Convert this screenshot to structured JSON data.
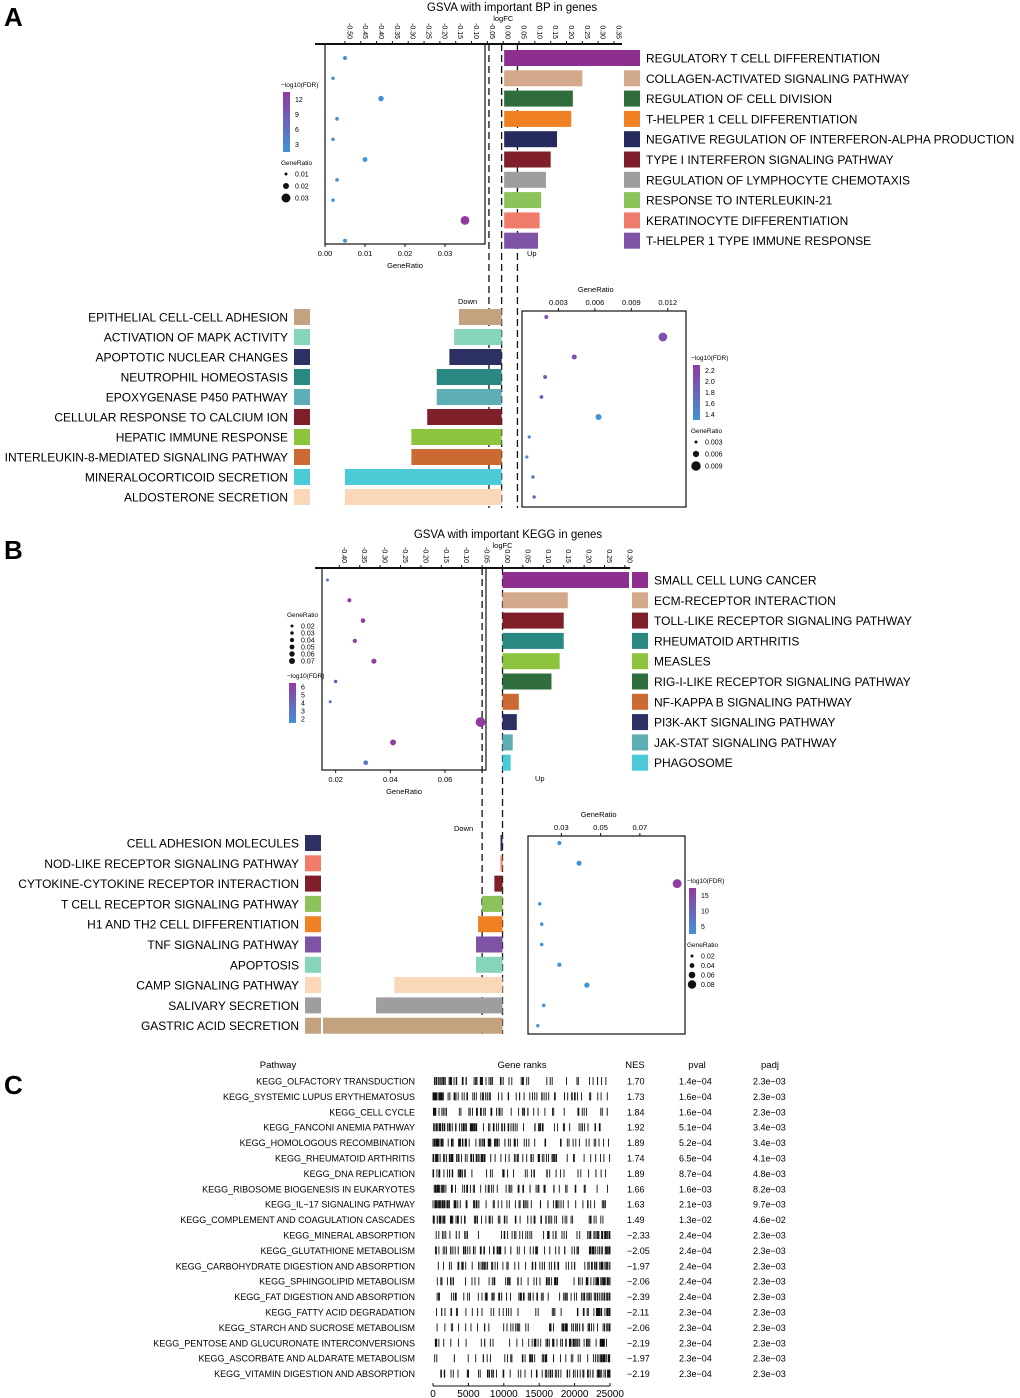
{
  "panel_labels": [
    "A",
    "B",
    "C"
  ],
  "chart_data": [
    {
      "type": "bar",
      "panel": "A",
      "title": "GSVA  with important BP in genes",
      "xlabel": "logFC",
      "logfc_ticks": [
        "-0.50",
        "-0.45",
        "-0.40",
        "-0.35",
        "-0.30",
        "-0.25",
        "-0.20",
        "-0.15",
        "-0.10",
        "-0.05",
        "0.00",
        "0.05",
        "0.10",
        "0.15",
        "0.20",
        "0.25",
        "0.30",
        "0.35"
      ],
      "up_label": "Up",
      "down_label": "Down",
      "up": [
        {
          "name": "REGULATORY T CELL DIFFERENTIATION",
          "logFC": 0.385,
          "color": "#8e2e8e"
        },
        {
          "name": "COLLAGEN-ACTIVATED SIGNALING PATHWAY",
          "logFC": 0.25,
          "color": "#d2a98a"
        },
        {
          "name": "REGULATION OF CELL DIVISION",
          "logFC": 0.22,
          "color": "#2f6e3c"
        },
        {
          "name": "T-HELPER 1 CELL DIFFERENTIATION",
          "logFC": 0.215,
          "color": "#ef8123"
        },
        {
          "name": "NEGATIVE REGULATION OF INTERFERON-ALPHA PRODUCTION",
          "logFC": 0.17,
          "color": "#262a5c"
        },
        {
          "name": "TYPE I INTERFERON SIGNALING PATHWAY",
          "logFC": 0.15,
          "color": "#7f1f29"
        },
        {
          "name": "REGULATION OF LYMPHOCYTE CHEMOTAXIS",
          "logFC": 0.135,
          "color": "#9e9ea0"
        },
        {
          "name": "RESPONSE TO INTERLEUKIN-21",
          "logFC": 0.12,
          "color": "#8dc35b"
        },
        {
          "name": "KERATINOCYTE DIFFERENTIATION",
          "logFC": 0.115,
          "color": "#f07c6b"
        },
        {
          "name": "T-HELPER 1 TYPE IMMUNE RESPONSE",
          "logFC": 0.11,
          "color": "#7e52a5"
        }
      ],
      "down": [
        {
          "name": "EPITHELIAL CELL-CELL ADHESION",
          "logFC": -0.14,
          "color": "#c3a27f"
        },
        {
          "name": "ACTIVATION OF MAPK ACTIVITY",
          "logFC": -0.155,
          "color": "#86d4bb"
        },
        {
          "name": "APOPTOTIC NUCLEAR CHANGES",
          "logFC": -0.17,
          "color": "#2c3063"
        },
        {
          "name": "NEUTROPHIL HOMEOSTASIS",
          "logFC": -0.21,
          "color": "#2a8883"
        },
        {
          "name": "EPOXYGENASE P450 PATHWAY",
          "logFC": -0.21,
          "color": "#5eaeb6"
        },
        {
          "name": "CELLULAR RESPONSE TO CALCIUM ION",
          "logFC": -0.24,
          "color": "#7e1f29"
        },
        {
          "name": "HEPATIC IMMUNE RESPONSE",
          "logFC": -0.29,
          "color": "#8dc33d"
        },
        {
          "name": "INTERLEUKIN-8-MEDIATED SIGNALING PATHWAY",
          "logFC": -0.29,
          "color": "#cb6a32"
        },
        {
          "name": "MINERALOCORTICOID SECRETION",
          "logFC": -0.5,
          "color": "#4ccbd6"
        },
        {
          "name": "ALDOSTERONE SECRETION",
          "logFC": -0.5,
          "color": "#f9d7b8"
        }
      ],
      "up_dots": {
        "xlabel": "GeneRatio",
        "xticks": [
          "0.00",
          "0.01",
          "0.02",
          "0.03"
        ],
        "xrange": [
          0,
          0.04
        ],
        "ratio": [
          0.005,
          0.002,
          0.014,
          0.003,
          0.002,
          0.01,
          0.003,
          0.002,
          0.035,
          0.005
        ],
        "fdr": [
          3,
          3,
          3,
          3,
          3,
          3,
          3,
          3,
          12,
          3
        ],
        "legend": {
          "fdr_title": "−log10(FDR)",
          "fdr_ticks": [
            "12",
            "9",
            "6",
            "3"
          ],
          "ratio_title": "GeneRatio",
          "ratio_ticks": [
            "0.01",
            "0.02",
            "0.03"
          ]
        }
      },
      "down_dots": {
        "xlabel": "GeneRatio",
        "xticks": [
          "0.003",
          "0.006",
          "0.009",
          "0.012"
        ],
        "xrange": [
          0,
          0.0135
        ],
        "ratio": [
          0.002,
          0.0116,
          0.0043,
          0.0019,
          0.0016,
          0.0063,
          0.0006,
          0.0004,
          0.0009,
          0.001
        ],
        "fdr": [
          2.0,
          2.0,
          2.0,
          1.9,
          1.9,
          1.4,
          1.5,
          1.5,
          1.6,
          1.7
        ],
        "legend": {
          "fdr_title": "−log10(FDR)",
          "fdr_ticks": [
            "2.2",
            "2.0",
            "1.8",
            "1.6",
            "1.4"
          ],
          "ratio_title": "GeneRatio",
          "ratio_ticks": [
            "0.003",
            "0.006",
            "0.009"
          ]
        }
      }
    },
    {
      "type": "bar",
      "panel": "B",
      "title": "GSVA  with important KEGG in genes",
      "xlabel": "logFC",
      "logfc_ticks": [
        "-0.40",
        "-0.35",
        "-0.30",
        "-0.25",
        "-0.20",
        "-0.15",
        "-0.10",
        "-0.05",
        "0.00",
        "0.05",
        "0.10",
        "0.15",
        "0.20",
        "0.25",
        "0.30"
      ],
      "up_label": "Up",
      "down_label": "Down",
      "up": [
        {
          "name": "SMALL CELL LUNG CANCER",
          "logFC": 0.31,
          "color": "#8e2e8e"
        },
        {
          "name": "ECM-RECEPTOR INTERACTION",
          "logFC": 0.16,
          "color": "#d2a98a"
        },
        {
          "name": "TOLL-LIKE RECEPTOR SIGNALING PATHWAY",
          "logFC": 0.15,
          "color": "#7f1f29"
        },
        {
          "name": "RHEUMATOID ARTHRITIS",
          "logFC": 0.15,
          "color": "#2a8883"
        },
        {
          "name": "MEASLES",
          "logFC": 0.14,
          "color": "#8dc33d"
        },
        {
          "name": "RIG-I-LIKE RECEPTOR SIGNALING PATHWAY",
          "logFC": 0.12,
          "color": "#2f6e3c"
        },
        {
          "name": "NF-KAPPA B SIGNALING PATHWAY",
          "logFC": 0.04,
          "color": "#cb6a32"
        },
        {
          "name": "PI3K-AKT SIGNALING PATHWAY",
          "logFC": 0.035,
          "color": "#2c3063"
        },
        {
          "name": "JAK-STAT SIGNALING PATHWAY",
          "logFC": 0.025,
          "color": "#5eaeb6"
        },
        {
          "name": "PHAGOSOME",
          "logFC": 0.02,
          "color": "#4ccbd6"
        }
      ],
      "down": [
        {
          "name": "CELL ADHESION MOLECULES",
          "logFC": 0.0,
          "color": "#2c3063"
        },
        {
          "name": "NOD-LIKE RECEPTOR SIGNALING PATHWAY",
          "logFC": -0.005,
          "color": "#f07c6b"
        },
        {
          "name": "CYTOKINE-CYTOKINE RECEPTOR INTERACTION",
          "logFC": -0.02,
          "color": "#7f1f29"
        },
        {
          "name": "T CELL RECEPTOR SIGNALING PATHWAY",
          "logFC": -0.05,
          "color": "#8dc35b"
        },
        {
          "name": "H1 AND TH2 CELL DIFFERENTIATION",
          "logFC": -0.06,
          "color": "#ef8123"
        },
        {
          "name": "TNF SIGNALING PATHWAY",
          "logFC": -0.065,
          "color": "#7e52a5"
        },
        {
          "name": "APOPTOSIS",
          "logFC": -0.065,
          "color": "#86d4bb"
        },
        {
          "name": "CAMP SIGNALING PATHWAY",
          "logFC": -0.265,
          "color": "#f9d7b8"
        },
        {
          "name": "SALIVARY SECRETION",
          "logFC": -0.31,
          "color": "#9e9ea0"
        },
        {
          "name": "GASTRIC ACID SECRETION",
          "logFC": -0.44,
          "color": "#c3a27f"
        }
      ],
      "up_dots": {
        "xlabel": "GeneRatio",
        "xticks": [
          "0.02",
          "0.04",
          "0.06"
        ],
        "xrange": [
          0.015,
          0.075
        ],
        "ratio": [
          0.017,
          0.025,
          0.03,
          0.027,
          0.034,
          0.02,
          0.018,
          0.073,
          0.041,
          0.031
        ],
        "fdr": [
          3,
          6,
          6,
          6,
          6,
          5,
          3,
          6,
          6,
          3
        ],
        "legend": {
          "ratio_title": "GeneRatio",
          "ratio_ticks": [
            "0.02",
            "0.03",
            "0.04",
            "0.05",
            "0.06",
            "0.07"
          ],
          "fdr_title": "−log10(FDR)",
          "fdr_ticks": [
            "6",
            "5",
            "4",
            "3",
            "2"
          ]
        }
      },
      "down_dots": {
        "xlabel": "GeneRatio",
        "xticks": [
          "0.03",
          "0.05",
          "0.07"
        ],
        "xrange": [
          0.013,
          0.093
        ],
        "ratio": [
          0.029,
          0.039,
          0.089,
          0.019,
          0.02,
          0.02,
          0.029,
          0.043,
          0.021,
          0.018
        ],
        "fdr": [
          4,
          4,
          17,
          3,
          3,
          3,
          3,
          4,
          3,
          3
        ],
        "legend": {
          "fdr_title": "−log10(FDR)",
          "fdr_ticks": [
            "15",
            "10",
            "5"
          ],
          "ratio_title": "GeneRatio",
          "ratio_ticks": [
            "0.02",
            "0.04",
            "0.06",
            "0.08"
          ]
        }
      }
    },
    {
      "type": "table",
      "panel": "C",
      "columns": [
        "Pathway",
        "Gene ranks",
        "NES",
        "pval",
        "padj"
      ],
      "x_ticks": [
        "0",
        "5000",
        "10000",
        "15000",
        "20000",
        "25000"
      ],
      "x_max": 25000,
      "rows": [
        {
          "pathway": "KEGG_OLFACTORY TRANSDUCTION",
          "nes": "1.70",
          "pval": "1.4e−04",
          "padj": "2.3e−03"
        },
        {
          "pathway": "KEGG_SYSTEMIC LUPUS ERYTHEMATOSUS",
          "nes": "1.73",
          "pval": "1.6e−04",
          "padj": "2.3e−03"
        },
        {
          "pathway": "KEGG_CELL CYCLE",
          "nes": "1.84",
          "pval": "1.6e−04",
          "padj": "2.3e−03"
        },
        {
          "pathway": "KEGG_FANCONI ANEMIA PATHWAY",
          "nes": "1.92",
          "pval": "5.1e−04",
          "padj": "3.4e−03"
        },
        {
          "pathway": "KEGG_HOMOLOGOUS RECOMBINATION",
          "nes": "1.89",
          "pval": "5.2e−04",
          "padj": "3.4e−03"
        },
        {
          "pathway": "KEGG_RHEUMATOID ARTHRITIS",
          "nes": "1.74",
          "pval": "6.5e−04",
          "padj": "4.1e−03"
        },
        {
          "pathway": "KEGG_DNA REPLICATION",
          "nes": "1.89",
          "pval": "8.7e−04",
          "padj": "4.8e−03"
        },
        {
          "pathway": "KEGG_RIBOSOME BIOGENESIS IN EUKARYOTES",
          "nes": "1.66",
          "pval": "1.6e−03",
          "padj": "8.2e−03"
        },
        {
          "pathway": "KEGG_IL−17 SIGNALING PATHWAY",
          "nes": "1.63",
          "pval": "2.1e−03",
          "padj": "9.7e−03"
        },
        {
          "pathway": "KEGG_COMPLEMENT AND COAGULATION CASCADES",
          "nes": "1.49",
          "pval": "1.3e−02",
          "padj": "4.6e−02"
        },
        {
          "pathway": "KEGG_MINERAL ABSORPTION",
          "nes": "−2.33",
          "pval": "2.4e−04",
          "padj": "2.3e−03"
        },
        {
          "pathway": "KEGG_GLUTATHIONE METABOLISM",
          "nes": "−2.05",
          "pval": "2.4e−04",
          "padj": "2.3e−03"
        },
        {
          "pathway": "KEGG_CARBOHYDRATE DIGESTION AND ABSORPTION",
          "nes": "−1.97",
          "pval": "2.4e−04",
          "padj": "2.3e−03"
        },
        {
          "pathway": "KEGG_SPHINGOLIPID METABOLISM",
          "nes": "−2.06",
          "pval": "2.4e−04",
          "padj": "2.3e−03"
        },
        {
          "pathway": "KEGG_FAT DIGESTION AND ABSORPTION",
          "nes": "−2.39",
          "pval": "2.4e−04",
          "padj": "2.3e−03"
        },
        {
          "pathway": "KEGG_FATTY ACID DEGRADATION",
          "nes": "−2.11",
          "pval": "2.3e−04",
          "padj": "2.3e−03"
        },
        {
          "pathway": "KEGG_STARCH AND SUCROSE METABOLISM",
          "nes": "−2.06",
          "pval": "2.3e−04",
          "padj": "2.3e−03"
        },
        {
          "pathway": "KEGG_PENTOSE AND GLUCURONATE INTERCONVERSIONS",
          "nes": "−2.19",
          "pval": "2.3e−04",
          "padj": "2.3e−03"
        },
        {
          "pathway": "KEGG_ASCORBATE AND ALDARATE METABOLISM",
          "nes": "−1.97",
          "pval": "2.3e−04",
          "padj": "2.3e−03"
        },
        {
          "pathway": "KEGG_VITAMIN DIGESTION AND ABSORPTION",
          "nes": "−2.19",
          "pval": "2.3e−04",
          "padj": "2.3e−03"
        }
      ]
    }
  ]
}
